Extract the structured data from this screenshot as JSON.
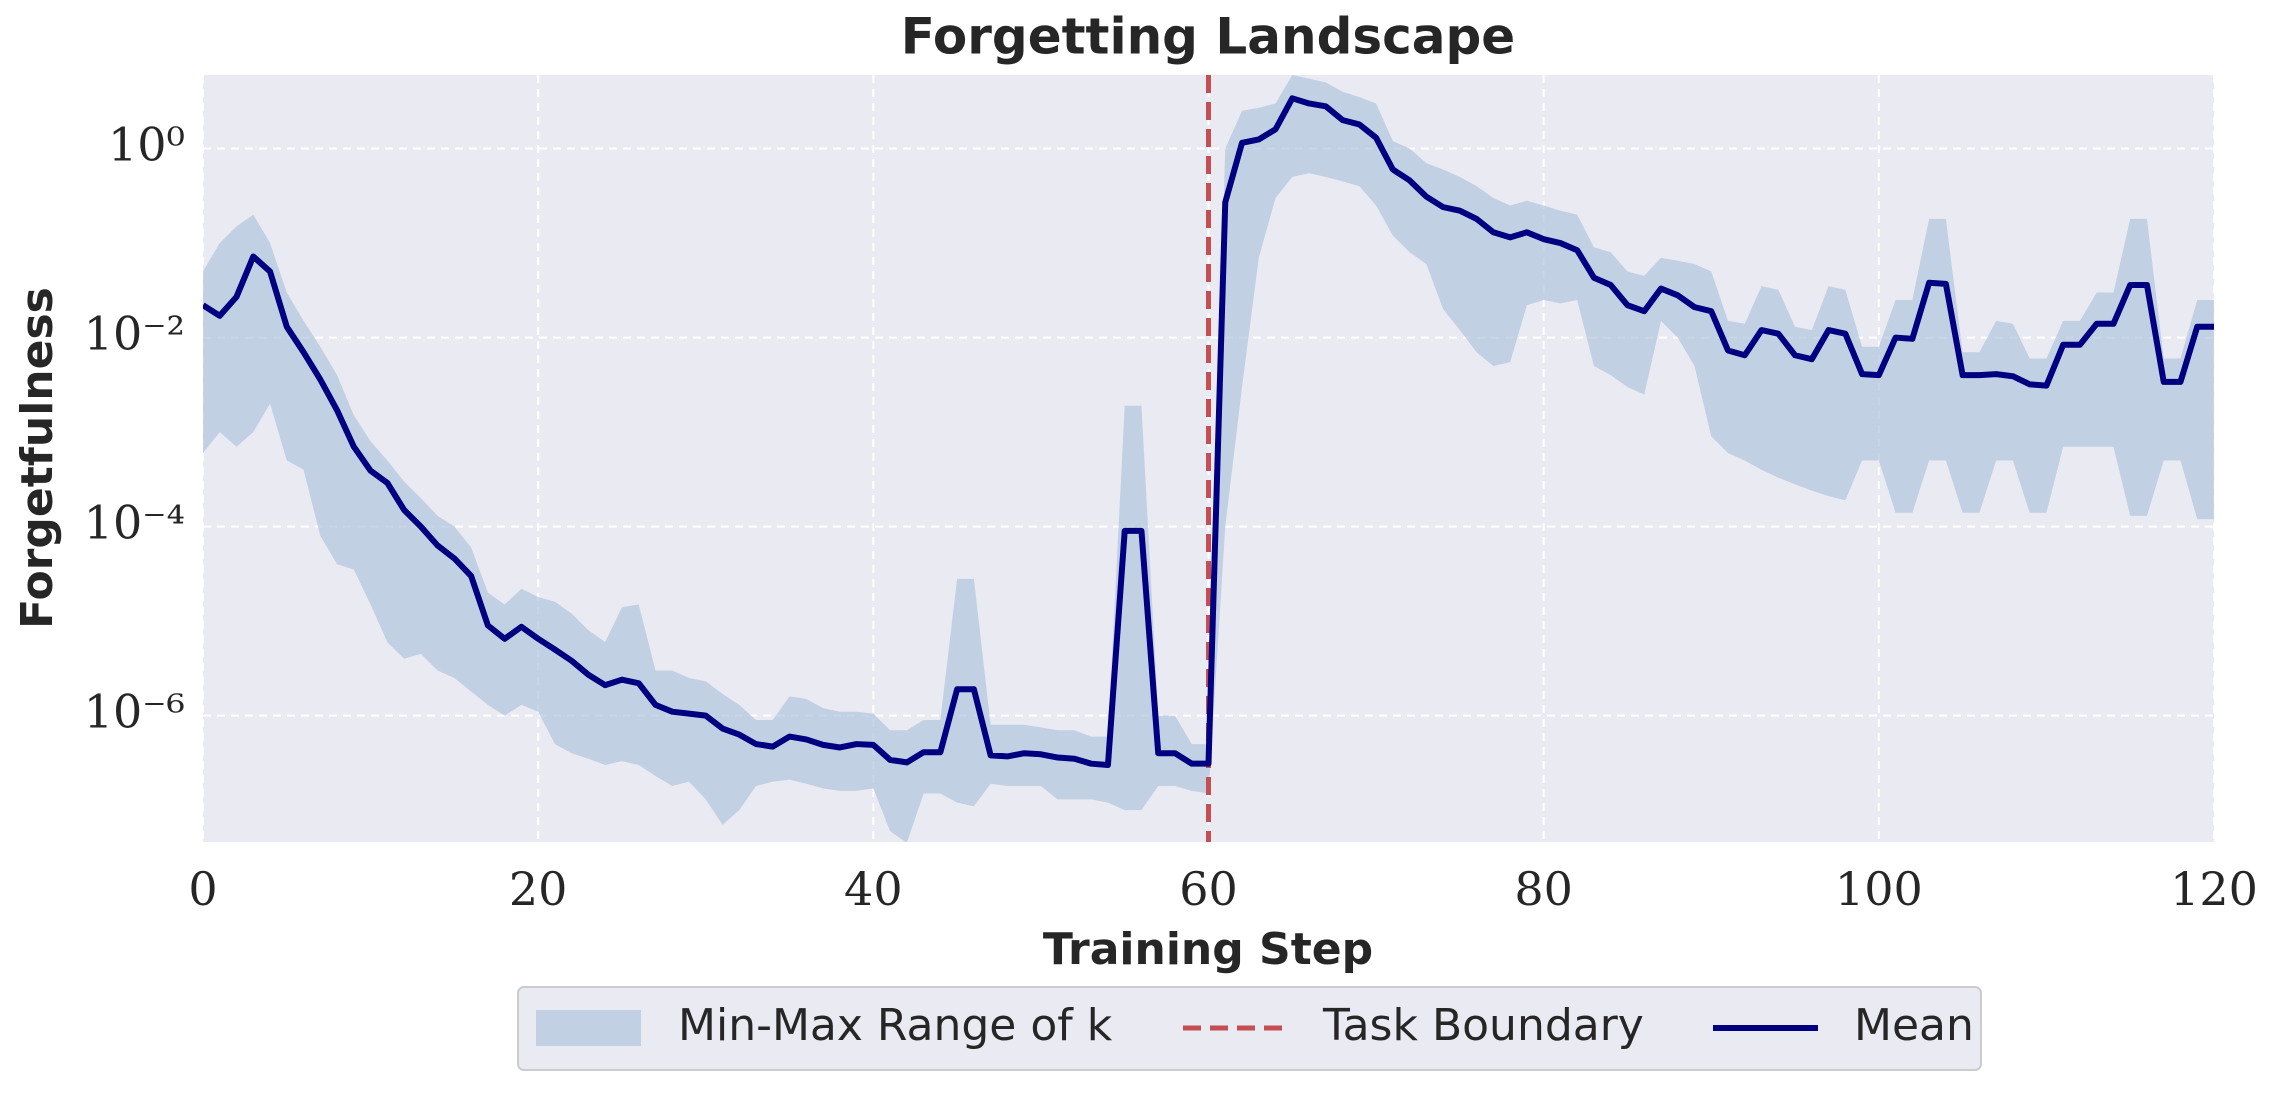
{
  "chart_data": {
    "type": "line",
    "title": "Forgetting Landscape",
    "xlabel": "Training Step",
    "ylabel": "Forgetfulness",
    "x": [
      0,
      1,
      2,
      3,
      4,
      5,
      6,
      7,
      8,
      9,
      10,
      11,
      12,
      13,
      14,
      15,
      16,
      17,
      18,
      19,
      20,
      21,
      22,
      23,
      24,
      25,
      26,
      27,
      28,
      29,
      30,
      31,
      32,
      33,
      34,
      35,
      36,
      37,
      38,
      39,
      40,
      41,
      42,
      43,
      44,
      45,
      46,
      47,
      48,
      49,
      50,
      51,
      52,
      53,
      54,
      55,
      56,
      57,
      58,
      59,
      60,
      61,
      62,
      63,
      64,
      65,
      66,
      67,
      68,
      69,
      70,
      71,
      72,
      73,
      74,
      75,
      76,
      77,
      78,
      79,
      80,
      81,
      82,
      83,
      84,
      85,
      86,
      87,
      88,
      89,
      90,
      91,
      92,
      93,
      94,
      95,
      96,
      97,
      98,
      99,
      100,
      101,
      102,
      103,
      104,
      105,
      106,
      107,
      108,
      109,
      110,
      111,
      112,
      113,
      114,
      115,
      116,
      117,
      118,
      119,
      120
    ],
    "series": [
      {
        "name": "Mean",
        "color": "#000080",
        "values": [
          0.022,
          0.017,
          0.027,
          0.072,
          0.05,
          0.013,
          0.007,
          0.0036,
          0.0017,
          0.0007,
          0.00039,
          0.00029,
          0.00015,
          0.0001,
          6.3e-05,
          4.6e-05,
          3e-05,
          9e-06,
          6.5e-06,
          8.7e-06,
          6.5e-06,
          5e-06,
          3.8e-06,
          2.7e-06,
          2.1e-06,
          2.4e-06,
          2.2e-06,
          1.3e-06,
          1.1e-06,
          1.05e-06,
          1e-06,
          7.3e-07,
          6.3e-07,
          5e-07,
          4.7e-07,
          6e-07,
          5.6e-07,
          4.9e-07,
          4.6e-07,
          5e-07,
          4.9e-07,
          3.4e-07,
          3.2e-07,
          4.1e-07,
          4.1e-07,
          1.9e-06,
          1.9e-06,
          3.8e-07,
          3.7e-07,
          4e-07,
          3.9e-07,
          3.6e-07,
          3.5e-07,
          3.1e-07,
          3e-07,
          9e-05,
          9e-05,
          4e-07,
          4e-07,
          3.1e-07,
          3.1e-07,
          0.27,
          1.15,
          1.25,
          1.6,
          3.4,
          3.0,
          2.8,
          2.0,
          1.8,
          1.3,
          0.6,
          0.46,
          0.31,
          0.24,
          0.22,
          0.18,
          0.13,
          0.115,
          0.13,
          0.11,
          0.1,
          0.084,
          0.043,
          0.036,
          0.022,
          0.019,
          0.033,
          0.028,
          0.021,
          0.019,
          0.0073,
          0.0065,
          0.012,
          0.011,
          0.0065,
          0.0059,
          0.012,
          0.011,
          0.0041,
          0.004,
          0.01,
          0.0097,
          0.038,
          0.037,
          0.004,
          0.004,
          0.0041,
          0.0039,
          0.0032,
          0.0031,
          0.0084,
          0.0084,
          0.014,
          0.014,
          0.036,
          0.036,
          0.0034,
          0.0034,
          0.013,
          0.013
        ]
      }
    ],
    "band": {
      "name": "Min-Max Range of k",
      "color": "#b0c4de",
      "upper": [
        0.05,
        0.1,
        0.15,
        0.2,
        0.1,
        0.03,
        0.015,
        0.008,
        0.004,
        0.0015,
        0.0008,
        0.0005,
        0.0003,
        0.0002,
        0.00013,
        0.0001,
        6e-05,
        2e-05,
        1.5e-05,
        2.2e-05,
        1.8e-05,
        1.6e-05,
        1.2e-05,
        8e-06,
        6e-06,
        1.4e-05,
        1.5e-05,
        3e-06,
        3e-06,
        2.5e-06,
        2.3e-06,
        1.7e-06,
        1.3e-06,
        9e-07,
        9e-07,
        1.6e-06,
        1.5e-06,
        1.2e-06,
        1.1e-06,
        1.1e-06,
        1.05e-06,
        7e-07,
        7e-07,
        9e-07,
        9e-07,
        2.8e-05,
        2.8e-05,
        8e-07,
        8e-07,
        8e-07,
        7.5e-07,
        7e-07,
        7e-07,
        6e-07,
        6e-07,
        0.0019,
        0.0019,
        1e-06,
        1e-06,
        5e-07,
        5e-07,
        1.0,
        2.5,
        2.7,
        3.0,
        6,
        5.5,
        5,
        4,
        3.5,
        3,
        1.2,
        1,
        0.7,
        0.6,
        0.5,
        0.4,
        0.3,
        0.25,
        0.28,
        0.25,
        0.22,
        0.2,
        0.09,
        0.08,
        0.05,
        0.045,
        0.07,
        0.065,
        0.06,
        0.05,
        0.015,
        0.014,
        0.035,
        0.032,
        0.013,
        0.012,
        0.035,
        0.032,
        0.008,
        0.008,
        0.025,
        0.025,
        0.18,
        0.18,
        0.007,
        0.007,
        0.015,
        0.014,
        0.006,
        0.006,
        0.015,
        0.015,
        0.03,
        0.03,
        0.18,
        0.18,
        0.006,
        0.006,
        0.025,
        0.025
      ],
      "lower": [
        0.0006,
        0.001,
        0.0007,
        0.001,
        0.002,
        0.0005,
        0.0004,
        8e-05,
        4e-05,
        3.5e-05,
        1.5e-05,
        6e-06,
        4e-06,
        4.5e-06,
        3e-06,
        2.5e-06,
        1.8e-06,
        1.3e-06,
        1e-06,
        1.3e-06,
        1.1e-06,
        5e-07,
        4e-07,
        3.5e-07,
        3e-07,
        3.3e-07,
        3e-07,
        2.3e-07,
        1.8e-07,
        2e-07,
        1.3e-07,
        7e-08,
        1e-07,
        1.8e-07,
        2e-07,
        2.1e-07,
        1.9e-07,
        1.7e-07,
        1.6e-07,
        1.6e-07,
        1.7e-07,
        6e-08,
        4.5e-08,
        1.5e-07,
        1.5e-07,
        1.2e-07,
        1.1e-07,
        1.9e-07,
        1.8e-07,
        1.8e-07,
        1.8e-07,
        1.3e-07,
        1.3e-07,
        1.3e-07,
        1.2e-07,
        1e-07,
        1e-07,
        1.8e-07,
        1.8e-07,
        1.6e-07,
        1.5e-07,
        0.0001,
        0.003,
        0.07,
        0.3,
        0.5,
        0.55,
        0.5,
        0.45,
        0.4,
        0.25,
        0.12,
        0.08,
        0.06,
        0.02,
        0.012,
        0.007,
        0.005,
        0.0055,
        0.022,
        0.025,
        0.023,
        0.025,
        0.005,
        0.004,
        0.003,
        0.0025,
        0.015,
        0.01,
        0.005,
        0.0009,
        0.0006,
        0.0005,
        0.0004,
        0.00033,
        0.00028,
        0.00024,
        0.00021,
        0.00019,
        0.0005,
        0.0005,
        0.00014,
        0.00014,
        0.0005,
        0.0005,
        0.00014,
        0.00014,
        0.0005,
        0.0005,
        0.00014,
        0.00014,
        0.0007,
        0.0007,
        0.0007,
        0.0007,
        0.00013,
        0.00013,
        0.0005,
        0.0005,
        0.00012,
        0.00012
      ]
    },
    "vline": {
      "name": "Task Boundary",
      "x": 60,
      "color": "#c44e52"
    },
    "xlim": [
      0,
      120
    ],
    "xticks": [
      0,
      20,
      40,
      60,
      80,
      100,
      120
    ],
    "ylim": [
      4.6e-08,
      6
    ],
    "log_y": true,
    "yticks": [
      {
        "value": 1,
        "label": "10⁰"
      },
      {
        "value": 0.01,
        "label": "10⁻²"
      },
      {
        "value": 0.0001,
        "label": "10⁻⁴"
      },
      {
        "value": 1e-06,
        "label": "10⁻⁶"
      }
    ],
    "grid": true,
    "legend": "bottom"
  }
}
